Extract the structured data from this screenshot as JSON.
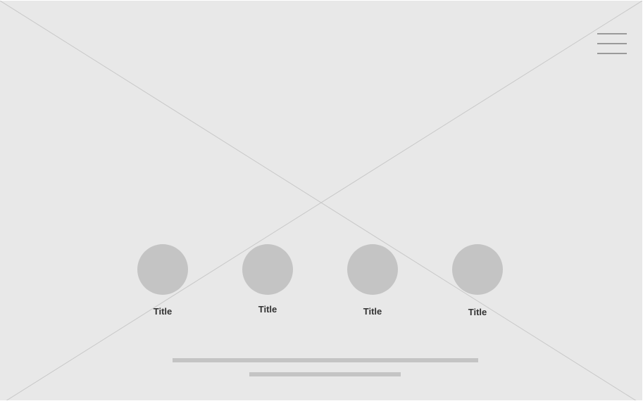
{
  "menu": {
    "icon": "hamburger-menu-icon"
  },
  "items": [
    {
      "title": "Title",
      "icon": "circle-placeholder-icon"
    },
    {
      "title": "Title",
      "icon": "circle-placeholder-icon"
    },
    {
      "title": "Title",
      "icon": "circle-placeholder-icon"
    },
    {
      "title": "Title",
      "icon": "circle-placeholder-icon"
    }
  ],
  "colors": {
    "background": "#e8e8e8",
    "placeholder_shape": "#c4c4c4",
    "menu_lines": "#9a9a9a",
    "cross_lines": "#c8c8c8",
    "title_text": "#333333"
  }
}
